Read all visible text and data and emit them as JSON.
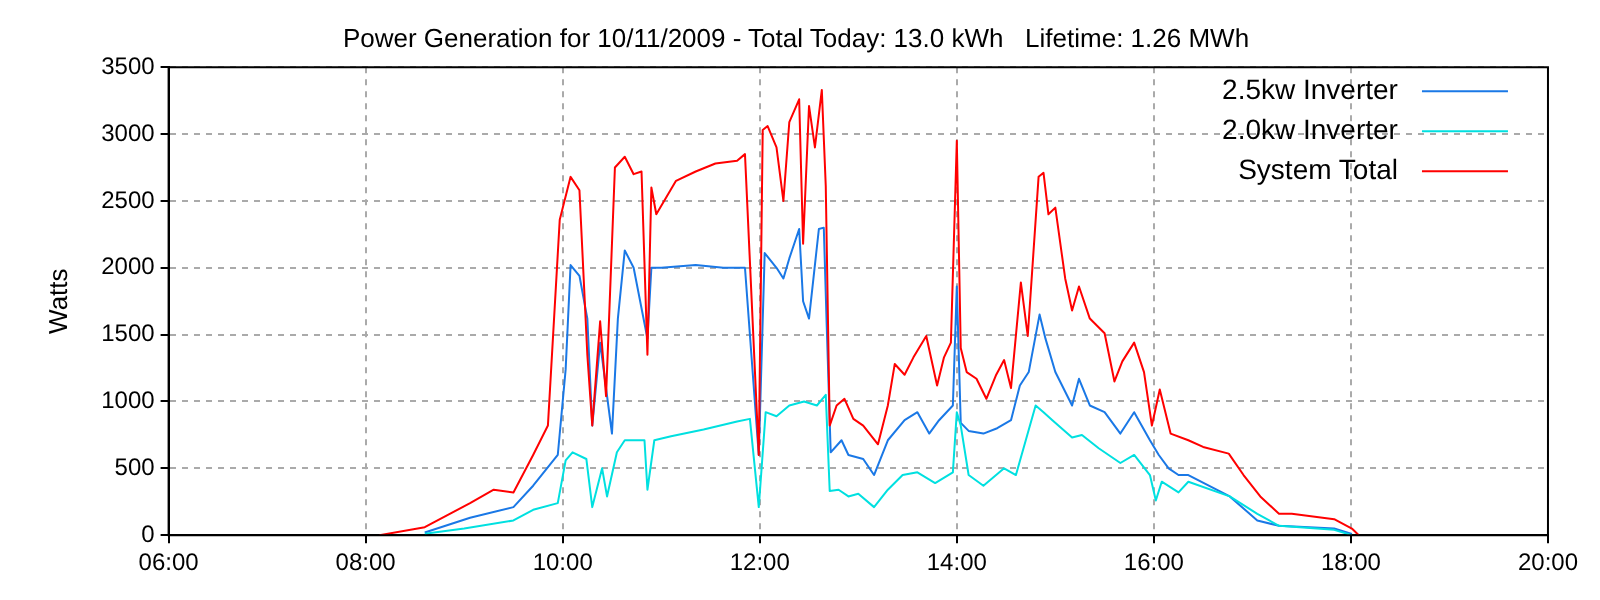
{
  "chart_data": {
    "type": "line",
    "title": "Power Generation for 10/11/2009 - Total Today: 13.0 kWh   Lifetime: 1.26 MWh",
    "ylabel": "Watts",
    "xlim": [
      6,
      20
    ],
    "xticks": [
      {
        "value": 6,
        "label": "06:00"
      },
      {
        "value": 8,
        "label": "08:00"
      },
      {
        "value": 10,
        "label": "10:00"
      },
      {
        "value": 12,
        "label": "12:00"
      },
      {
        "value": 14,
        "label": "14:00"
      },
      {
        "value": 16,
        "label": "16:00"
      },
      {
        "value": 18,
        "label": "18:00"
      },
      {
        "value": 20,
        "label": "20:00"
      }
    ],
    "ylim": [
      0,
      3500
    ],
    "yticks": [
      0,
      500,
      1000,
      1500,
      2000,
      2500,
      3000,
      3500
    ],
    "grid": true,
    "legend": "top right",
    "marker": "none",
    "line_style": "solid",
    "series": [
      {
        "name": "2.5kw Inverter",
        "color": "#1a78e6",
        "x": [
          8.6,
          9.06,
          9.5,
          9.7,
          9.95,
          10.03,
          10.08,
          10.17,
          10.25,
          10.3,
          10.38,
          10.5,
          10.56,
          10.63,
          10.72,
          10.86,
          10.9,
          11.0,
          11.35,
          11.63,
          11.85,
          11.99,
          12.05,
          12.17,
          12.24,
          12.3,
          12.4,
          12.44,
          12.5,
          12.6,
          12.65,
          12.68,
          12.72,
          12.83,
          12.9,
          13.05,
          13.16,
          13.3,
          13.47,
          13.6,
          13.72,
          13.82,
          13.96,
          14.0,
          14.04,
          14.12,
          14.27,
          14.41,
          14.55,
          14.64,
          14.73,
          14.84,
          14.9,
          15.0,
          15.17,
          15.24,
          15.35,
          15.5,
          15.66,
          15.8,
          15.96,
          16.05,
          16.15,
          16.25,
          16.35,
          16.77,
          17.05,
          17.27,
          17.83,
          18.01
        ],
        "values": [
          20,
          130,
          210,
          370,
          600,
          1240,
          2020,
          1940,
          1620,
          820,
          1440,
          760,
          1620,
          2130,
          2000,
          1470,
          2000,
          2000,
          2020,
          2000,
          2000,
          600,
          2110,
          2000,
          1920,
          2070,
          2290,
          1750,
          1620,
          2290,
          2300,
          1560,
          620,
          710,
          600,
          570,
          450,
          710,
          860,
          920,
          760,
          860,
          970,
          1860,
          840,
          780,
          760,
          800,
          860,
          1120,
          1220,
          1650,
          1470,
          1220,
          970,
          1170,
          970,
          920,
          760,
          920,
          710,
          600,
          500,
          450,
          450,
          290,
          110,
          70,
          50,
          10
        ]
      },
      {
        "name": "2.0kw Inverter",
        "color": "#00e0e0",
        "x": [
          8.6,
          9.0,
          9.5,
          9.7,
          9.95,
          10.03,
          10.1,
          10.24,
          10.3,
          10.4,
          10.45,
          10.55,
          10.63,
          10.83,
          10.86,
          10.93,
          11.1,
          11.43,
          11.77,
          11.9,
          11.99,
          12.06,
          12.17,
          12.3,
          12.45,
          12.58,
          12.67,
          12.71,
          12.8,
          12.9,
          13.0,
          13.16,
          13.3,
          13.45,
          13.6,
          13.78,
          13.96,
          14.0,
          14.04,
          14.12,
          14.27,
          14.48,
          14.6,
          14.7,
          14.8,
          14.88,
          14.97,
          15.17,
          15.27,
          15.44,
          15.66,
          15.8,
          15.96,
          16.02,
          16.08,
          16.25,
          16.35,
          16.77,
          17.05,
          17.27,
          17.83,
          18.01
        ],
        "values": [
          10,
          50,
          110,
          190,
          240,
          560,
          620,
          570,
          210,
          500,
          290,
          620,
          710,
          710,
          340,
          710,
          740,
          790,
          850,
          870,
          210,
          920,
          890,
          970,
          1000,
          970,
          1050,
          330,
          340,
          290,
          310,
          210,
          340,
          450,
          470,
          390,
          470,
          920,
          820,
          450,
          370,
          500,
          450,
          710,
          970,
          920,
          860,
          730,
          750,
          650,
          540,
          600,
          450,
          260,
          400,
          320,
          400,
          290,
          160,
          70,
          40,
          0
        ]
      },
      {
        "name": "System Total",
        "color": "#ff0000",
        "x": [
          8.14,
          8.6,
          9.06,
          9.3,
          9.5,
          9.7,
          9.85,
          9.97,
          10.08,
          10.17,
          10.25,
          10.3,
          10.38,
          10.44,
          10.53,
          10.63,
          10.72,
          10.8,
          10.86,
          10.9,
          10.95,
          11.15,
          11.35,
          11.55,
          11.77,
          11.85,
          11.99,
          12.03,
          12.08,
          12.17,
          12.24,
          12.3,
          12.4,
          12.44,
          12.5,
          12.56,
          12.63,
          12.67,
          12.71,
          12.78,
          12.86,
          12.95,
          13.05,
          13.2,
          13.3,
          13.37,
          13.47,
          13.56,
          13.69,
          13.8,
          13.87,
          13.94,
          14.0,
          14.04,
          14.1,
          14.2,
          14.3,
          14.4,
          14.48,
          14.55,
          14.65,
          14.72,
          14.83,
          14.88,
          14.93,
          15.0,
          15.1,
          15.17,
          15.24,
          15.35,
          15.5,
          15.6,
          15.68,
          15.8,
          15.9,
          15.98,
          16.06,
          16.17,
          16.35,
          16.5,
          16.76,
          16.91,
          17.08,
          17.27,
          17.4,
          17.83,
          18.01,
          18.08
        ],
        "values": [
          0,
          60,
          240,
          340,
          320,
          600,
          820,
          2360,
          2680,
          2580,
          1350,
          820,
          1600,
          1040,
          2750,
          2830,
          2700,
          2720,
          1350,
          2600,
          2400,
          2650,
          2720,
          2780,
          2800,
          2850,
          600,
          3030,
          3060,
          2900,
          2500,
          3090,
          3260,
          2180,
          3210,
          2900,
          3330,
          2610,
          820,
          970,
          1020,
          870,
          820,
          680,
          970,
          1280,
          1200,
          1330,
          1490,
          1120,
          1330,
          1440,
          2950,
          1400,
          1220,
          1170,
          1020,
          1200,
          1310,
          1100,
          1890,
          1490,
          2680,
          2710,
          2400,
          2450,
          1920,
          1680,
          1860,
          1620,
          1510,
          1150,
          1300,
          1440,
          1220,
          820,
          1090,
          760,
          710,
          660,
          610,
          450,
          290,
          160,
          160,
          120,
          50,
          0
        ]
      }
    ]
  }
}
